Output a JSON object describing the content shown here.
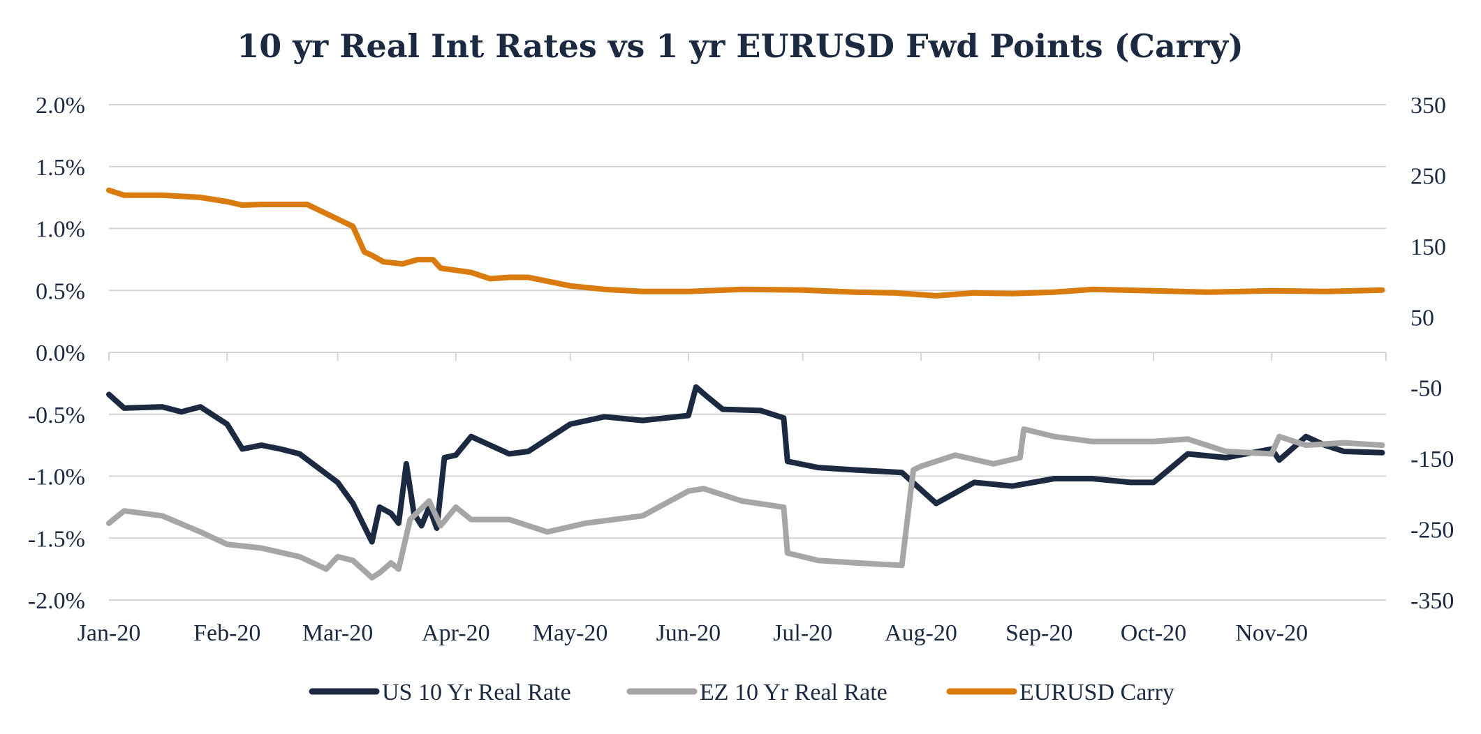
{
  "chart_data": {
    "type": "line",
    "title": "10 yr Real Int Rates vs 1 yr EURUSD Fwd Points (Carry)",
    "x_tick_labels": [
      "Jan-20",
      "Feb-20",
      "Mar-20",
      "Apr-20",
      "May-20",
      "Jun-20",
      "Jul-20",
      "Aug-20",
      "Sep-20",
      "Oct-20",
      "Nov-20"
    ],
    "left_axis": {
      "ylim": [
        -2.0,
        2.0
      ],
      "tick_labels": [
        "2.0%",
        "1.5%",
        "1.0%",
        "0.5%",
        "0.0%",
        "-0.5%",
        "-1.0%",
        "-1.5%",
        "-2.0%"
      ]
    },
    "right_axis": {
      "ylim": [
        -350,
        350
      ],
      "tick_labels": [
        "350",
        "250",
        "150",
        "50",
        "-50",
        "-150",
        "-250",
        "-350"
      ]
    },
    "grid": true,
    "legend_position": "bottom",
    "series": [
      {
        "name": "US 10 Yr Real Rate",
        "axis": "left",
        "color": "#1b2a41",
        "x": [
          "2020-01-01",
          "2020-01-05",
          "2020-01-15",
          "2020-01-20",
          "2020-01-25",
          "2020-02-01",
          "2020-02-05",
          "2020-02-10",
          "2020-02-15",
          "2020-02-20",
          "2020-03-01",
          "2020-03-05",
          "2020-03-10",
          "2020-03-12",
          "2020-03-15",
          "2020-03-17",
          "2020-03-19",
          "2020-03-21",
          "2020-03-23",
          "2020-03-25",
          "2020-03-27",
          "2020-03-29",
          "2020-04-01",
          "2020-04-05",
          "2020-04-15",
          "2020-04-20",
          "2020-05-01",
          "2020-05-10",
          "2020-05-20",
          "2020-06-01",
          "2020-06-03",
          "2020-06-06",
          "2020-06-10",
          "2020-06-20",
          "2020-06-26",
          "2020-06-27",
          "2020-07-05",
          "2020-07-15",
          "2020-07-27",
          "2020-08-05",
          "2020-08-15",
          "2020-08-25",
          "2020-09-05",
          "2020-09-15",
          "2020-09-25",
          "2020-10-01",
          "2020-10-10",
          "2020-10-20",
          "2020-11-01",
          "2020-11-03",
          "2020-11-10",
          "2020-11-15",
          "2020-11-20",
          "2020-11-30"
        ],
        "values": [
          -0.34,
          -0.45,
          -0.44,
          -0.48,
          -0.44,
          -0.58,
          -0.78,
          -0.75,
          -0.78,
          -0.82,
          -1.05,
          -1.22,
          -1.53,
          -1.25,
          -1.3,
          -1.38,
          -0.9,
          -1.3,
          -1.4,
          -1.25,
          -1.42,
          -0.85,
          -0.83,
          -0.68,
          -0.82,
          -0.8,
          -0.58,
          -0.52,
          -0.55,
          -0.51,
          -0.28,
          -0.36,
          -0.46,
          -0.47,
          -0.53,
          -0.88,
          -0.93,
          -0.95,
          -0.97,
          -1.22,
          -1.05,
          -1.08,
          -1.02,
          -1.02,
          -1.05,
          -1.05,
          -0.82,
          -0.85,
          -0.78,
          -0.87,
          -0.68,
          -0.75,
          -0.8,
          -0.81
        ]
      },
      {
        "name": "EZ 10 Yr Real Rate",
        "axis": "left",
        "color": "#a6a6a6",
        "x": [
          "2020-01-01",
          "2020-01-05",
          "2020-01-15",
          "2020-01-25",
          "2020-02-01",
          "2020-02-10",
          "2020-02-20",
          "2020-02-27",
          "2020-03-01",
          "2020-03-05",
          "2020-03-10",
          "2020-03-12",
          "2020-03-15",
          "2020-03-17",
          "2020-03-20",
          "2020-03-25",
          "2020-03-28",
          "2020-04-01",
          "2020-04-05",
          "2020-04-15",
          "2020-04-25",
          "2020-05-05",
          "2020-05-20",
          "2020-06-01",
          "2020-06-05",
          "2020-06-15",
          "2020-06-26",
          "2020-06-27",
          "2020-07-05",
          "2020-07-15",
          "2020-07-27",
          "2020-07-30",
          "2020-08-01",
          "2020-08-05",
          "2020-08-10",
          "2020-08-20",
          "2020-08-27",
          "2020-08-28",
          "2020-09-05",
          "2020-09-15",
          "2020-10-01",
          "2020-10-10",
          "2020-10-20",
          "2020-11-01",
          "2020-11-03",
          "2020-11-10",
          "2020-11-20",
          "2020-11-30"
        ],
        "values": [
          -1.38,
          -1.28,
          -1.32,
          -1.45,
          -1.55,
          -1.58,
          -1.65,
          -1.75,
          -1.65,
          -1.68,
          -1.82,
          -1.78,
          -1.7,
          -1.75,
          -1.35,
          -1.2,
          -1.4,
          -1.25,
          -1.35,
          -1.35,
          -1.45,
          -1.38,
          -1.32,
          -1.12,
          -1.1,
          -1.2,
          -1.25,
          -1.62,
          -1.68,
          -1.7,
          -1.72,
          -0.95,
          -0.92,
          -0.88,
          -0.83,
          -0.9,
          -0.85,
          -0.62,
          -0.68,
          -0.72,
          -0.72,
          -0.7,
          -0.8,
          -0.82,
          -0.68,
          -0.75,
          -0.73,
          -0.75
        ]
      },
      {
        "name": "EURUSD Carry",
        "axis": "right",
        "color": "#d97b0f",
        "x": [
          "2020-01-01",
          "2020-01-05",
          "2020-01-15",
          "2020-01-25",
          "2020-02-01",
          "2020-02-05",
          "2020-02-10",
          "2020-02-15",
          "2020-02-22",
          "2020-02-29",
          "2020-03-05",
          "2020-03-08",
          "2020-03-10",
          "2020-03-13",
          "2020-03-18",
          "2020-03-22",
          "2020-03-26",
          "2020-03-28",
          "2020-04-05",
          "2020-04-10",
          "2020-04-15",
          "2020-04-20",
          "2020-05-01",
          "2020-05-10",
          "2020-05-20",
          "2020-06-01",
          "2020-06-15",
          "2020-07-01",
          "2020-07-15",
          "2020-07-25",
          "2020-08-05",
          "2020-08-15",
          "2020-08-25",
          "2020-09-05",
          "2020-09-15",
          "2020-10-01",
          "2020-10-15",
          "2020-11-01",
          "2020-11-15",
          "2020-11-30"
        ],
        "values": [
          229,
          222,
          222,
          219,
          213,
          208,
          209,
          209,
          209,
          191,
          178,
          142,
          137,
          128,
          125,
          131,
          131,
          119,
          113,
          104,
          106,
          106,
          94,
          89,
          86,
          86,
          89,
          88,
          85,
          84,
          80,
          84,
          83,
          85,
          89,
          87,
          85,
          87,
          86,
          88
        ]
      }
    ]
  }
}
